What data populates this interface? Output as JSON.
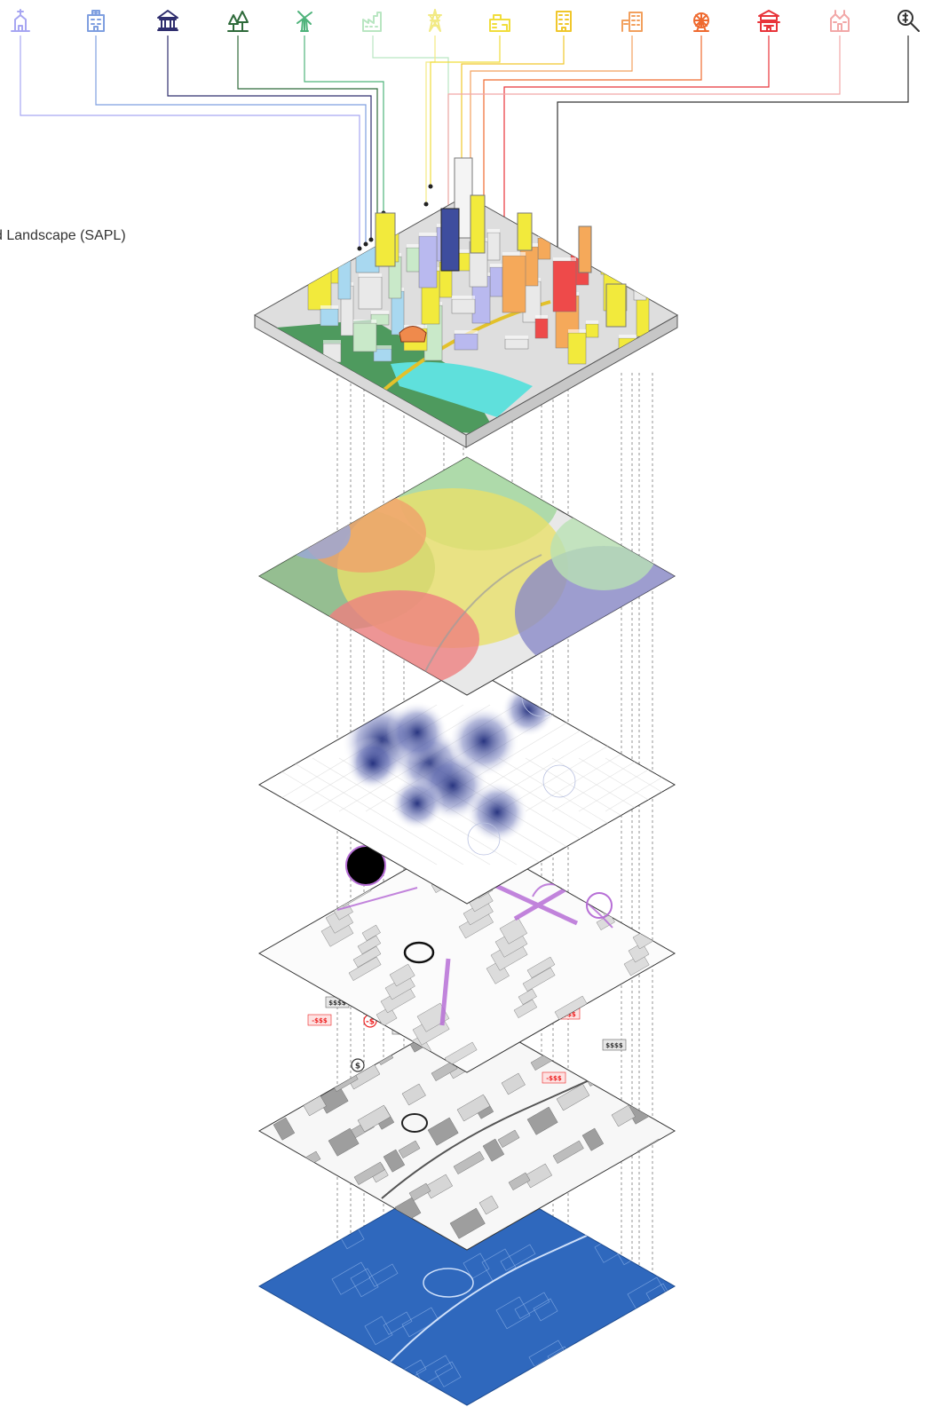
{
  "caption": {
    "text": "d Landscape (SAPL)"
  },
  "icons": [
    {
      "name": "church-icon",
      "color": "#a7a6f2"
    },
    {
      "name": "hospital-icon",
      "color": "#7f9fe0"
    },
    {
      "name": "museum-icon",
      "color": "#2f2e6e"
    },
    {
      "name": "park-trees-icon",
      "color": "#2e6a3a"
    },
    {
      "name": "windmill-icon",
      "color": "#4fb37b"
    },
    {
      "name": "factory-icon",
      "color": "#b9e6c2"
    },
    {
      "name": "power-tower-icon",
      "color": "#f2ea83"
    },
    {
      "name": "warehouse-icon",
      "color": "#f1dd3b"
    },
    {
      "name": "hotel-icon",
      "color": "#f0c72c"
    },
    {
      "name": "apartment-icon",
      "color": "#f2a05e"
    },
    {
      "name": "amusement-park-icon",
      "color": "#ef6a2f"
    },
    {
      "name": "pagoda-icon",
      "color": "#e8343a"
    },
    {
      "name": "temple-icon",
      "color": "#f2a8a8"
    },
    {
      "name": "search-money-icon",
      "color": "#333333"
    }
  ],
  "layers": [
    {
      "name": "city-3d-model-layer"
    },
    {
      "name": "land-use-zones-layer"
    },
    {
      "name": "density-heatmap-layer"
    },
    {
      "name": "movement-flows-layer"
    },
    {
      "name": "economic-flows-layer"
    },
    {
      "name": "base-map-blueprint-layer"
    }
  ],
  "economic_labels": [
    "$$$$",
    "-$$$",
    "-$",
    "$$$$",
    "-$",
    "-$$$",
    "$$$$",
    "-$$$",
    "$"
  ]
}
